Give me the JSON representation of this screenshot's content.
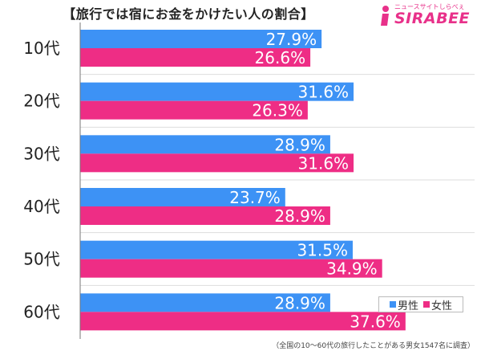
{
  "header": {
    "title": "【旅行では宿にお金をかけたい人の割合】"
  },
  "logo": {
    "kana": "ニュースサイトしらべぇ",
    "name": "SIRABEE"
  },
  "colors": {
    "male": "#3d92f5",
    "female": "#ee2d85",
    "axis": "#777777",
    "grid": "#dddddd"
  },
  "legend": {
    "male": "男性",
    "female": "女性"
  },
  "footnote": "（全国の10〜60代の旅行したことがある男女1547名に調査）",
  "chart_data": {
    "type": "bar",
    "orientation": "horizontal",
    "title": "【旅行では宿にお金をかけたい人の割合】",
    "categories": [
      "10代",
      "20代",
      "30代",
      "40代",
      "50代",
      "60代"
    ],
    "series": [
      {
        "name": "男性",
        "values": [
          27.9,
          31.6,
          28.9,
          23.7,
          31.5,
          28.9
        ],
        "labels": [
          "27.9%",
          "31.6%",
          "28.9%",
          "23.7%",
          "31.5%",
          "28.9%"
        ]
      },
      {
        "name": "女性",
        "values": [
          26.6,
          26.3,
          31.6,
          28.9,
          34.9,
          37.6
        ],
        "labels": [
          "26.6%",
          "26.3%",
          "31.6%",
          "28.9%",
          "34.9%",
          "37.6%"
        ]
      }
    ],
    "xlim": [
      0,
      40
    ],
    "grid": false,
    "legend_position": "bottom-right",
    "value_label_color": "#ffffff"
  }
}
